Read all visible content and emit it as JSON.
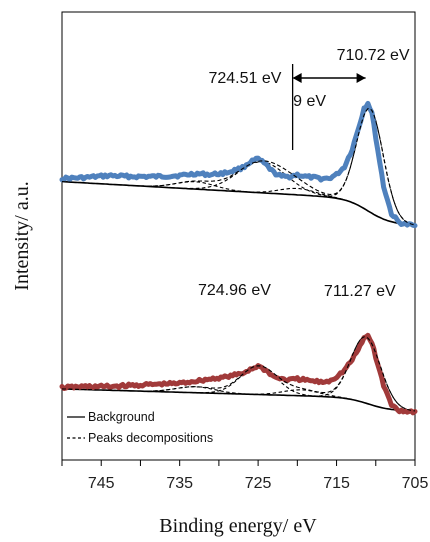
{
  "chart_data": {
    "type": "line",
    "xlabel": "Binding energy/ eV",
    "ylabel": "Intensity/ a.u.",
    "xlim": [
      750,
      705
    ],
    "x_reversed": true,
    "x_ticks": [
      745,
      735,
      725,
      715,
      705
    ],
    "y_ticks_shown": false,
    "grid": false,
    "legend_placement": "bottom-left",
    "legend": [
      {
        "label": "Background",
        "style": "solid"
      },
      {
        "label": "Peaks decompositions",
        "style": "dashed"
      }
    ],
    "colors": {
      "top_spectrum": "#4f81bd",
      "bottom_spectrum": "#a13a3a",
      "fit": "#000000"
    },
    "series": [
      {
        "x": [
          750,
          747,
          744,
          741,
          738,
          735,
          733,
          731,
          729,
          727,
          726,
          725,
          724,
          723,
          722,
          721,
          720,
          719,
          718,
          717,
          716,
          715,
          714,
          713,
          712,
          711.5,
          711,
          710.5,
          710,
          709,
          708,
          707,
          706,
          705
        ],
        "values": [
          0.78,
          0.79,
          0.81,
          0.8,
          0.8,
          0.81,
          0.83,
          0.82,
          0.84,
          0.89,
          0.95,
          0.98,
          0.92,
          0.84,
          0.8,
          0.8,
          0.82,
          0.8,
          0.79,
          0.78,
          0.78,
          0.82,
          0.9,
          1.08,
          1.35,
          1.5,
          1.55,
          1.45,
          1.2,
          0.7,
          0.42,
          0.33,
          0.31,
          0.3
        ],
        "peaks": [
          {
            "x": 724.51,
            "label": "724.51 eV"
          },
          {
            "x": 710.72,
            "label": "710.72 eV"
          }
        ],
        "separation_label": "9 eV"
      },
      {
        "x": [
          750,
          747,
          744,
          741,
          738,
          735,
          733,
          731,
          729,
          727,
          726,
          725,
          724,
          723,
          722,
          721,
          720,
          719,
          718,
          717,
          716,
          715,
          714,
          713,
          712,
          711.5,
          711,
          710.5,
          710,
          709,
          708,
          707,
          706,
          705
        ],
        "values": [
          0.3,
          0.31,
          0.31,
          0.32,
          0.33,
          0.34,
          0.36,
          0.38,
          0.4,
          0.43,
          0.47,
          0.5,
          0.46,
          0.4,
          0.38,
          0.37,
          0.38,
          0.37,
          0.36,
          0.35,
          0.36,
          0.4,
          0.46,
          0.56,
          0.68,
          0.76,
          0.78,
          0.72,
          0.58,
          0.32,
          0.14,
          0.09,
          0.08,
          0.08
        ],
        "peaks": [
          {
            "x": 724.96,
            "label": "724.96 eV"
          },
          {
            "x": 711.27,
            "label": "711.27 eV"
          }
        ]
      }
    ]
  }
}
